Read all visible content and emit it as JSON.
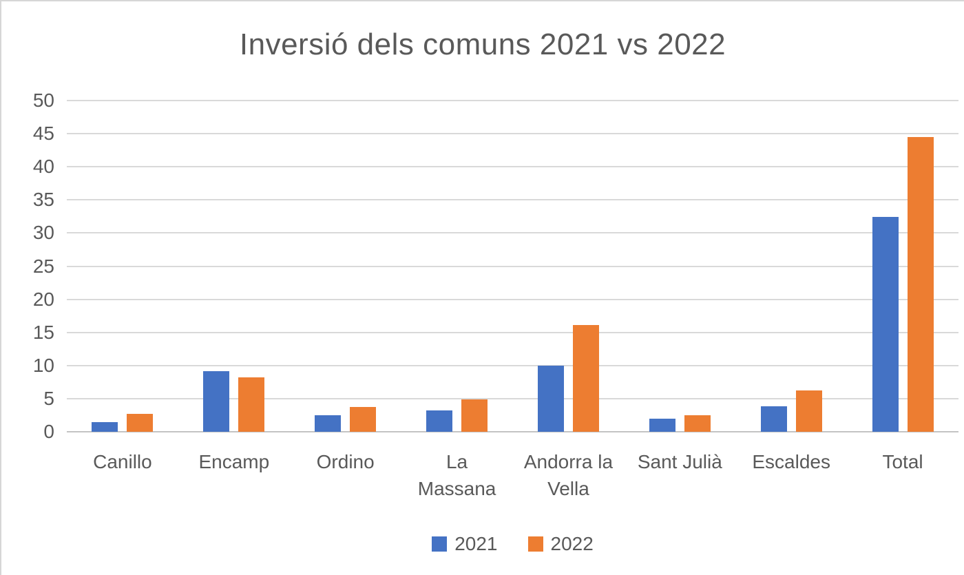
{
  "chart_data": {
    "type": "bar",
    "title": "Inversió dels comuns 2021 vs 2022",
    "categories": [
      "Canillo",
      "Encamp",
      "Ordino",
      "La Massana",
      "Andorra la Vella",
      "Sant Julià",
      "Escaldes",
      "Total"
    ],
    "series": [
      {
        "name": "2021",
        "color": "#4472C4",
        "values": [
          1.5,
          9.2,
          2.5,
          3.2,
          10.0,
          2.0,
          3.8,
          32.4
        ]
      },
      {
        "name": "2022",
        "color": "#ED7D31",
        "values": [
          2.7,
          8.2,
          3.7,
          4.9,
          16.1,
          2.5,
          6.2,
          44.5
        ]
      }
    ],
    "ylim": [
      0,
      50
    ],
    "yticks": [
      0,
      5,
      10,
      15,
      20,
      25,
      30,
      35,
      40,
      45,
      50
    ],
    "grid": true,
    "legend_position": "bottom",
    "colors": {
      "title_text": "#595959",
      "axis_text": "#595959",
      "gridline": "#d9d9d9"
    }
  }
}
